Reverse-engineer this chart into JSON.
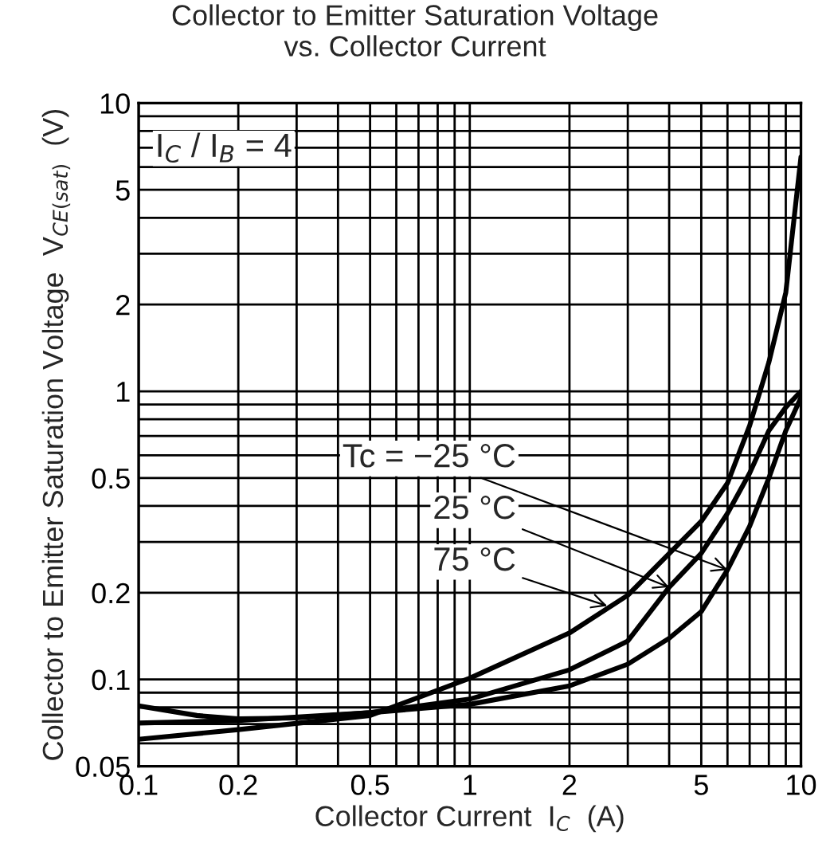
{
  "chart_data": {
    "type": "line",
    "title": "Collector to Emitter Saturation Voltage\nvs. Collector Current",
    "xlabel": "Collector Current  I$_{C}$  (A)",
    "ylabel": "Collector to Emitter Saturation Voltage  V$_{CE(sat)}$  (V)",
    "log": "xy",
    "grid": true,
    "xlim": [
      0.1,
      10
    ],
    "ylim": [
      0.05,
      10
    ],
    "xticks": [
      0.1,
      0.2,
      0.5,
      1,
      2,
      5,
      10
    ],
    "yticks": [
      0.05,
      0.1,
      0.2,
      0.5,
      1,
      2,
      5,
      10
    ],
    "marker": "none",
    "line_style": "solid",
    "annotations": [
      "I$_{C}$ / I$_{B}$ = 4",
      {
        "text": "Tc = −25 °C",
        "x": 6,
        "y": 0.24
      },
      {
        "text": "25 °C",
        "x": 4,
        "y": 0.209
      },
      {
        "text": "75 °C",
        "x": 2.6,
        "y": 0.18
      }
    ],
    "series": [
      {
        "color": "#000000",
        "x": [
          0.1,
          0.15,
          0.2,
          0.3,
          0.5,
          1,
          2,
          3,
          4,
          5,
          6,
          7,
          8,
          9,
          10
        ],
        "values": [
          0.081,
          0.075,
          0.073,
          0.0735,
          0.0767,
          0.082,
          0.095,
          0.113,
          0.139,
          0.172,
          0.24,
          0.34,
          0.5,
          0.73,
          0.95
        ]
      },
      {
        "color": "#000000",
        "x": [
          0.1,
          0.2,
          0.5,
          1,
          2,
          3,
          4,
          5,
          6,
          7,
          8,
          9,
          10
        ],
        "values": [
          0.0706,
          0.072,
          0.0767,
          0.0855,
          0.108,
          0.136,
          0.209,
          0.274,
          0.377,
          0.52,
          0.73,
          0.88,
          1.0
        ]
      },
      {
        "color": "#000000",
        "x": [
          0.1,
          0.2,
          0.5,
          1,
          2,
          3,
          5,
          6,
          7,
          8,
          9,
          10
        ],
        "values": [
          0.062,
          0.067,
          0.075,
          0.101,
          0.145,
          0.196,
          0.354,
          0.48,
          0.76,
          1.26,
          2.2,
          6.5
        ]
      }
    ]
  }
}
